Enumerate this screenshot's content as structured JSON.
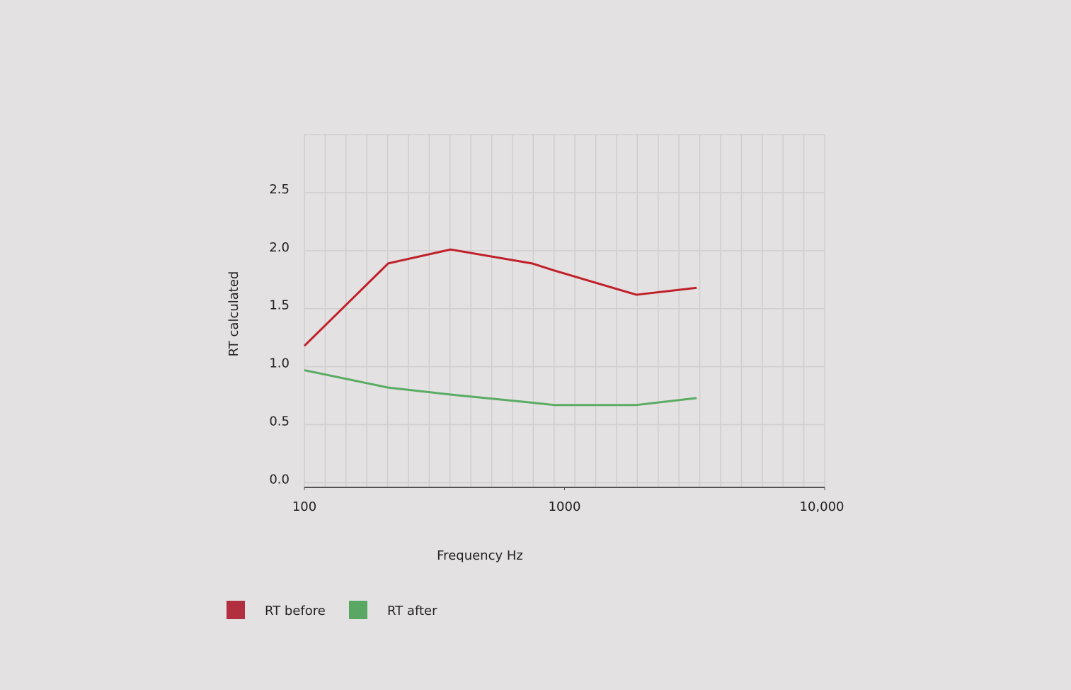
{
  "chart_data": {
    "type": "line",
    "y_label": "RT calculated",
    "x_label": "Frequency Hz",
    "x": [
      100,
      210,
      365,
      750,
      910,
      1890,
      3220
    ],
    "series": [
      {
        "name": "RT before",
        "color": "#c0202a",
        "legend_color": "#b12f3e",
        "values": [
          1.18,
          1.89,
          2.01,
          1.89,
          1.83,
          1.62,
          1.68
        ]
      },
      {
        "name": "RT after",
        "color": "#5aab63",
        "legend_color": "#58a863",
        "values": [
          0.97,
          0.82,
          0.76,
          0.69,
          0.67,
          0.67,
          0.73
        ]
      }
    ],
    "xlim": [
      100,
      10000
    ],
    "x_log": true,
    "xticks": [
      100,
      1000,
      {
        "value": 10000,
        "label": "10,000"
      }
    ],
    "ylim": [
      -0.04,
      3.0
    ],
    "yticks": [
      {
        "value": 0,
        "label": "0.0"
      },
      0.5,
      {
        "value": 1,
        "label": "1.0"
      },
      1.5,
      {
        "value": 2,
        "label": "2.0"
      },
      2.5
    ],
    "grid": true
  }
}
